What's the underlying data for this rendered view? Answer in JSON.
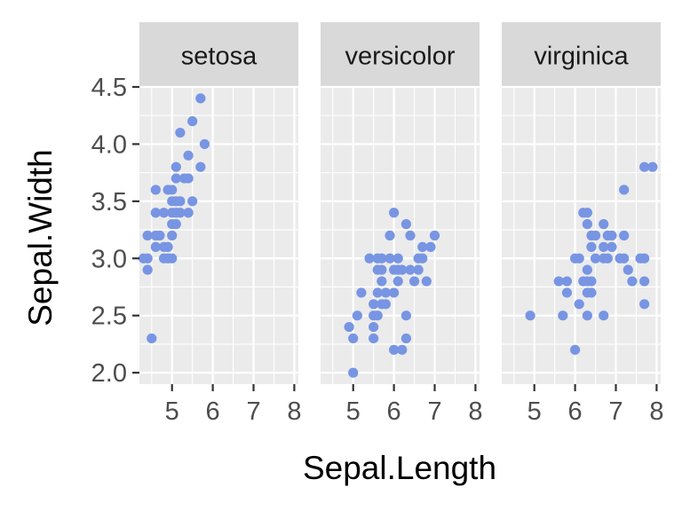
{
  "chart_data": {
    "type": "scatter",
    "facet_by": "Species",
    "xlabel": "Sepal.Length",
    "ylabel": "Sepal.Width",
    "xlim": [
      4.2,
      8.1
    ],
    "ylim": [
      1.9,
      4.5
    ],
    "x_breaks": [
      5,
      6,
      7,
      8
    ],
    "y_breaks": [
      2.0,
      2.5,
      3.0,
      3.5,
      4.0,
      4.5
    ],
    "x_tick_labels": [
      "5",
      "6",
      "7",
      "8"
    ],
    "y_tick_labels": [
      "2.0",
      "2.5",
      "3.0",
      "3.5",
      "4.0",
      "4.5"
    ],
    "point_color": "#7895e3",
    "grid": true,
    "panels": [
      {
        "strip": "setosa",
        "points": [
          [
            4.3,
            3.0
          ],
          [
            4.4,
            2.9
          ],
          [
            4.4,
            3.0
          ],
          [
            4.4,
            3.2
          ],
          [
            4.5,
            2.3
          ],
          [
            4.6,
            3.1
          ],
          [
            4.6,
            3.2
          ],
          [
            4.6,
            3.4
          ],
          [
            4.6,
            3.6
          ],
          [
            4.7,
            3.2
          ],
          [
            4.8,
            3.0
          ],
          [
            4.8,
            3.1
          ],
          [
            4.8,
            3.4
          ],
          [
            4.9,
            3.0
          ],
          [
            4.9,
            3.1
          ],
          [
            4.9,
            3.6
          ],
          [
            5.0,
            3.0
          ],
          [
            5.0,
            3.2
          ],
          [
            5.0,
            3.3
          ],
          [
            5.0,
            3.4
          ],
          [
            5.0,
            3.5
          ],
          [
            5.0,
            3.6
          ],
          [
            5.1,
            3.3
          ],
          [
            5.1,
            3.4
          ],
          [
            5.1,
            3.5
          ],
          [
            5.1,
            3.7
          ],
          [
            5.1,
            3.8
          ],
          [
            5.2,
            3.4
          ],
          [
            5.2,
            3.5
          ],
          [
            5.2,
            4.1
          ],
          [
            5.3,
            3.7
          ],
          [
            5.4,
            3.4
          ],
          [
            5.4,
            3.7
          ],
          [
            5.4,
            3.9
          ],
          [
            5.5,
            3.5
          ],
          [
            5.5,
            4.2
          ],
          [
            5.7,
            3.8
          ],
          [
            5.7,
            4.4
          ],
          [
            5.8,
            4.0
          ]
        ]
      },
      {
        "strip": "versicolor",
        "points": [
          [
            4.9,
            2.4
          ],
          [
            5.0,
            2.0
          ],
          [
            5.0,
            2.3
          ],
          [
            5.1,
            2.5
          ],
          [
            5.2,
            2.7
          ],
          [
            5.4,
            3.0
          ],
          [
            5.5,
            2.3
          ],
          [
            5.5,
            2.4
          ],
          [
            5.5,
            2.5
          ],
          [
            5.5,
            2.6
          ],
          [
            5.6,
            2.5
          ],
          [
            5.6,
            2.7
          ],
          [
            5.6,
            2.9
          ],
          [
            5.6,
            3.0
          ],
          [
            5.7,
            2.6
          ],
          [
            5.7,
            2.8
          ],
          [
            5.7,
            2.9
          ],
          [
            5.7,
            3.0
          ],
          [
            5.8,
            2.6
          ],
          [
            5.8,
            2.7
          ],
          [
            5.9,
            3.0
          ],
          [
            5.9,
            3.2
          ],
          [
            6.0,
            2.2
          ],
          [
            6.0,
            2.7
          ],
          [
            6.0,
            2.9
          ],
          [
            6.0,
            3.4
          ],
          [
            6.1,
            2.8
          ],
          [
            6.1,
            2.9
          ],
          [
            6.1,
            3.0
          ],
          [
            6.2,
            2.2
          ],
          [
            6.2,
            2.9
          ],
          [
            6.3,
            2.3
          ],
          [
            6.3,
            2.5
          ],
          [
            6.3,
            3.3
          ],
          [
            6.4,
            2.9
          ],
          [
            6.4,
            3.2
          ],
          [
            6.5,
            2.8
          ],
          [
            6.6,
            2.9
          ],
          [
            6.6,
            3.0
          ],
          [
            6.7,
            3.0
          ],
          [
            6.7,
            3.1
          ],
          [
            6.8,
            2.8
          ],
          [
            6.9,
            3.1
          ],
          [
            7.0,
            3.2
          ]
        ]
      },
      {
        "strip": "virginica",
        "points": [
          [
            4.9,
            2.5
          ],
          [
            5.6,
            2.8
          ],
          [
            5.7,
            2.5
          ],
          [
            5.8,
            2.7
          ],
          [
            5.8,
            2.8
          ],
          [
            6.0,
            2.2
          ],
          [
            6.0,
            3.0
          ],
          [
            6.1,
            2.6
          ],
          [
            6.1,
            3.0
          ],
          [
            6.2,
            2.8
          ],
          [
            6.2,
            3.4
          ],
          [
            6.3,
            2.5
          ],
          [
            6.3,
            2.7
          ],
          [
            6.3,
            2.8
          ],
          [
            6.3,
            2.9
          ],
          [
            6.3,
            3.3
          ],
          [
            6.3,
            3.4
          ],
          [
            6.4,
            2.7
          ],
          [
            6.4,
            2.8
          ],
          [
            6.4,
            3.1
          ],
          [
            6.4,
            3.2
          ],
          [
            6.5,
            3.0
          ],
          [
            6.5,
            3.2
          ],
          [
            6.7,
            2.5
          ],
          [
            6.7,
            3.0
          ],
          [
            6.7,
            3.1
          ],
          [
            6.7,
            3.3
          ],
          [
            6.8,
            3.0
          ],
          [
            6.8,
            3.2
          ],
          [
            6.9,
            3.1
          ],
          [
            6.9,
            3.2
          ],
          [
            7.1,
            3.0
          ],
          [
            7.2,
            3.0
          ],
          [
            7.2,
            3.2
          ],
          [
            7.2,
            3.6
          ],
          [
            7.3,
            2.9
          ],
          [
            7.4,
            2.8
          ],
          [
            7.6,
            3.0
          ],
          [
            7.7,
            2.6
          ],
          [
            7.7,
            2.8
          ],
          [
            7.7,
            3.0
          ],
          [
            7.7,
            3.8
          ],
          [
            7.9,
            3.8
          ]
        ]
      }
    ]
  }
}
